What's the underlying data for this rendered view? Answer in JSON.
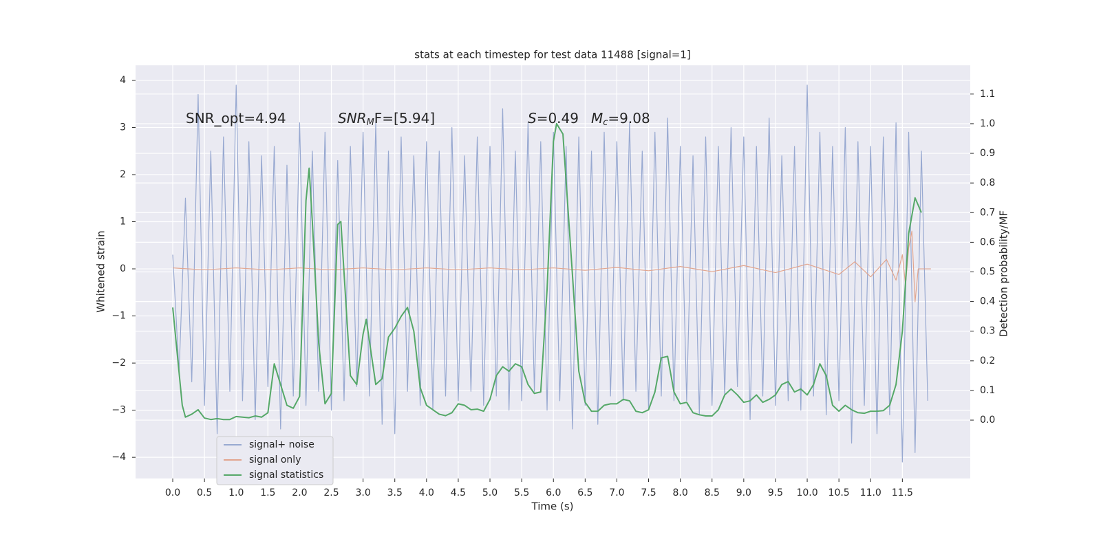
{
  "chart_data": {
    "type": "line",
    "title": "stats at each timestep for test data 11488 [signal=1]",
    "xlabel": "Time (s)",
    "ylabel": "Whitened strain",
    "y2label": "Detection probability/MF",
    "annotations": [
      {
        "text": "SNR_opt=4.94"
      },
      {
        "text": "SNR",
        "sub": "M",
        "rest": "F=[5.94]"
      },
      {
        "text": "S",
        "rest": "=0.49"
      },
      {
        "text": "M",
        "sub": "c",
        "rest": "=9.08"
      }
    ],
    "xlim": [
      -0.586,
      12.57
    ],
    "ylim": [
      -4.45,
      4.32
    ],
    "y2lim": [
      -0.197,
      1.197
    ],
    "xticks": [
      {
        "value": 0,
        "label": "0.0"
      },
      {
        "value": 0.5,
        "label": "0.5"
      },
      {
        "value": 1,
        "label": "1.0"
      },
      {
        "value": 1.5,
        "label": "1.5"
      },
      {
        "value": 2,
        "label": "2.0"
      },
      {
        "value": 2.5,
        "label": "2.5"
      },
      {
        "value": 3,
        "label": "3.0"
      },
      {
        "value": 3.5,
        "label": "3.5"
      },
      {
        "value": 4,
        "label": "4.0"
      },
      {
        "value": 4.5,
        "label": "4.5"
      },
      {
        "value": 5,
        "label": "5.0"
      },
      {
        "value": 5.5,
        "label": "5.5"
      },
      {
        "value": 6,
        "label": "6.0"
      },
      {
        "value": 6.5,
        "label": "6.5"
      },
      {
        "value": 7,
        "label": "7.0"
      },
      {
        "value": 7.5,
        "label": "7.5"
      },
      {
        "value": 8,
        "label": "8.0"
      },
      {
        "value": 8.5,
        "label": "8.5"
      },
      {
        "value": 9,
        "label": "9.0"
      },
      {
        "value": 9.5,
        "label": "9.5"
      },
      {
        "value": 10,
        "label": "10.0"
      },
      {
        "value": 10.5,
        "label": "10.5"
      },
      {
        "value": 11,
        "label": "11.0"
      },
      {
        "value": 11.5,
        "label": "11.5"
      }
    ],
    "yticks": [
      {
        "value": -4,
        "label": "−4"
      },
      {
        "value": -3,
        "label": "−3"
      },
      {
        "value": -2,
        "label": "−2"
      },
      {
        "value": -1,
        "label": "−1"
      },
      0,
      1,
      2,
      3,
      4
    ],
    "y2ticks": [
      {
        "value": 0,
        "label": "0.0"
      },
      {
        "value": 0.1,
        "label": "0.1"
      },
      {
        "value": 0.2,
        "label": "0.2"
      },
      {
        "value": 0.3,
        "label": "0.3"
      },
      {
        "value": 0.4,
        "label": "0.4"
      },
      {
        "value": 0.5,
        "label": "0.5"
      },
      {
        "value": 0.6,
        "label": "0.6"
      },
      {
        "value": 0.7,
        "label": "0.7"
      },
      {
        "value": 0.8,
        "label": "0.8"
      },
      {
        "value": 0.9,
        "label": "0.9"
      },
      {
        "value": 1,
        "label": "1.0"
      },
      {
        "value": 1.1,
        "label": "1.1"
      }
    ],
    "grid": true,
    "legend": "lower left",
    "series": [
      {
        "name": "signal+ noise",
        "color": "#98a9d1",
        "x": [
          0,
          0.1,
          0.2,
          0.3,
          0.4,
          0.5,
          0.6,
          0.7,
          0.8,
          0.9,
          1,
          1.1,
          1.2,
          1.3,
          1.4,
          1.5,
          1.6,
          1.7,
          1.8,
          1.9,
          2,
          2.1,
          2.2,
          2.3,
          2.4,
          2.5,
          2.6,
          2.7,
          2.8,
          2.9,
          3,
          3.1,
          3.2,
          3.3,
          3.4,
          3.5,
          3.6,
          3.7,
          3.8,
          3.9,
          4,
          4.1,
          4.2,
          4.3,
          4.4,
          4.5,
          4.6,
          4.7,
          4.8,
          4.9,
          5,
          5.1,
          5.2,
          5.3,
          5.4,
          5.5,
          5.6,
          5.7,
          5.8,
          5.9,
          6,
          6.1,
          6.2,
          6.3,
          6.4,
          6.5,
          6.6,
          6.7,
          6.8,
          6.9,
          7,
          7.1,
          7.2,
          7.3,
          7.4,
          7.5,
          7.6,
          7.7,
          7.8,
          7.9,
          8,
          8.1,
          8.2,
          8.3,
          8.4,
          8.5,
          8.6,
          8.7,
          8.8,
          8.9,
          9,
          9.1,
          9.2,
          9.3,
          9.4,
          9.5,
          9.6,
          9.7,
          9.8,
          9.9,
          10,
          10.1,
          10.2,
          10.3,
          10.4,
          10.5,
          10.6,
          10.7,
          10.8,
          10.9,
          11,
          11.1,
          11.2,
          11.3,
          11.4,
          11.5,
          11.6,
          11.7,
          11.8,
          11.9
        ],
        "values": [
          0.3,
          -2.2,
          1.5,
          -2.4,
          3.7,
          -2.9,
          2.5,
          -3.5,
          2.8,
          -2.6,
          3.9,
          -2.8,
          2.7,
          -3.2,
          2.4,
          -2.5,
          2.6,
          -3.4,
          2.2,
          -2.7,
          3.1,
          -2.9,
          2.5,
          -2.6,
          2.9,
          -3.0,
          2.3,
          -2.8,
          2.6,
          -2.5,
          2.9,
          -2.7,
          3.1,
          -3.3,
          2.5,
          -3.5,
          2.8,
          -2.6,
          2.4,
          -2.9,
          2.7,
          -3.0,
          2.5,
          -2.7,
          3.0,
          -2.8,
          2.4,
          -2.6,
          2.8,
          -2.9,
          2.6,
          -2.7,
          3.4,
          -3.0,
          2.5,
          -2.8,
          3.1,
          -2.6,
          2.7,
          -3.0,
          2.9,
          -2.8,
          2.6,
          -3.4,
          2.8,
          -2.9,
          2.5,
          -3.3,
          2.9,
          -2.7,
          2.7,
          -2.8,
          3.1,
          -2.6,
          2.5,
          -3.0,
          2.9,
          -2.7,
          3.2,
          -2.8,
          2.6,
          -2.8,
          2.4,
          -3.1,
          2.8,
          -2.9,
          2.6,
          -2.7,
          3.0,
          -2.5,
          2.8,
          -3.2,
          2.6,
          -2.7,
          3.2,
          -2.9,
          2.4,
          -2.8,
          2.6,
          -3.0,
          3.9,
          -2.7,
          2.9,
          -3.1,
          2.6,
          -2.8,
          3.0,
          -3.7,
          2.7,
          -2.9,
          2.6,
          -3.5,
          2.8,
          -3.1,
          3.1,
          -4.1,
          2.9,
          -3.9,
          2.5,
          -2.8
        ]
      },
      {
        "name": "signal only",
        "color": "#e2a58e",
        "x": [
          0,
          0.5,
          1,
          1.5,
          2,
          2.5,
          3,
          3.5,
          4,
          4.5,
          5,
          5.5,
          6,
          6.5,
          7,
          7.5,
          8,
          8.5,
          9,
          9.5,
          10,
          10.5,
          10.75,
          11,
          11.25,
          11.4,
          11.5,
          11.55,
          11.6,
          11.65,
          11.7,
          11.75,
          11.95
        ],
        "values": [
          0.02,
          -0.02,
          0.02,
          -0.02,
          0.02,
          -0.02,
          0.02,
          -0.02,
          0.02,
          -0.02,
          0.02,
          -0.02,
          0.02,
          -0.03,
          0.03,
          -0.04,
          0.05,
          -0.06,
          0.07,
          -0.08,
          0.1,
          -0.12,
          0.15,
          -0.17,
          0.2,
          -0.24,
          0.3,
          -0.35,
          0.45,
          0.8,
          -0.7,
          0,
          0
        ]
      },
      {
        "name": "signal statistics",
        "color": "#55a868",
        "axis": "y2",
        "x": [
          0,
          0.1,
          0.15,
          0.2,
          0.3,
          0.4,
          0.5,
          0.6,
          0.7,
          0.8,
          0.9,
          1,
          1.1,
          1.2,
          1.3,
          1.4,
          1.5,
          1.6,
          1.7,
          1.8,
          1.9,
          2,
          2.1,
          2.15,
          2.2,
          2.3,
          2.4,
          2.5,
          2.6,
          2.65,
          2.8,
          2.9,
          3,
          3.05,
          3.2,
          3.3,
          3.4,
          3.5,
          3.6,
          3.7,
          3.8,
          3.9,
          4,
          4.1,
          4.2,
          4.3,
          4.4,
          4.5,
          4.6,
          4.7,
          4.8,
          4.9,
          5,
          5.1,
          5.2,
          5.3,
          5.4,
          5.5,
          5.6,
          5.7,
          5.8,
          5.9,
          6,
          6.05,
          6.15,
          6.3,
          6.4,
          6.5,
          6.6,
          6.7,
          6.8,
          6.9,
          7,
          7.1,
          7.2,
          7.3,
          7.4,
          7.5,
          7.6,
          7.7,
          7.8,
          7.9,
          8,
          8.1,
          8.2,
          8.3,
          8.4,
          8.5,
          8.6,
          8.7,
          8.8,
          8.9,
          9,
          9.1,
          9.2,
          9.3,
          9.4,
          9.5,
          9.6,
          9.7,
          9.8,
          9.9,
          10,
          10.1,
          10.2,
          10.3,
          10.4,
          10.5,
          10.6,
          10.7,
          10.8,
          10.9,
          11,
          11.1,
          11.2,
          11.3,
          11.4,
          11.5,
          11.6,
          11.7,
          11.8
        ],
        "values": [
          0.38,
          0.16,
          0.05,
          0.01,
          0.02,
          0.035,
          0.007,
          0.002,
          0.005,
          0.002,
          0.002,
          0.012,
          0.01,
          0.008,
          0.014,
          0.01,
          0.025,
          0.19,
          0.12,
          0.05,
          0.04,
          0.08,
          0.74,
          0.85,
          0.67,
          0.26,
          0.055,
          0.09,
          0.66,
          0.67,
          0.15,
          0.12,
          0.29,
          0.34,
          0.12,
          0.14,
          0.28,
          0.31,
          0.35,
          0.38,
          0.3,
          0.11,
          0.05,
          0.035,
          0.02,
          0.015,
          0.025,
          0.055,
          0.05,
          0.035,
          0.037,
          0.03,
          0.07,
          0.15,
          0.18,
          0.165,
          0.19,
          0.18,
          0.12,
          0.09,
          0.095,
          0.44,
          0.94,
          1.0,
          0.965,
          0.49,
          0.165,
          0.06,
          0.03,
          0.03,
          0.05,
          0.055,
          0.055,
          0.07,
          0.065,
          0.03,
          0.025,
          0.035,
          0.095,
          0.21,
          0.215,
          0.095,
          0.055,
          0.06,
          0.025,
          0.018,
          0.014,
          0.014,
          0.035,
          0.085,
          0.105,
          0.085,
          0.06,
          0.065,
          0.085,
          0.06,
          0.07,
          0.085,
          0.12,
          0.13,
          0.095,
          0.105,
          0.085,
          0.12,
          0.19,
          0.15,
          0.05,
          0.03,
          0.05,
          0.035,
          0.025,
          0.023,
          0.03,
          0.03,
          0.032,
          0.05,
          0.12,
          0.3,
          0.63,
          0.75,
          0.7
        ]
      }
    ]
  }
}
